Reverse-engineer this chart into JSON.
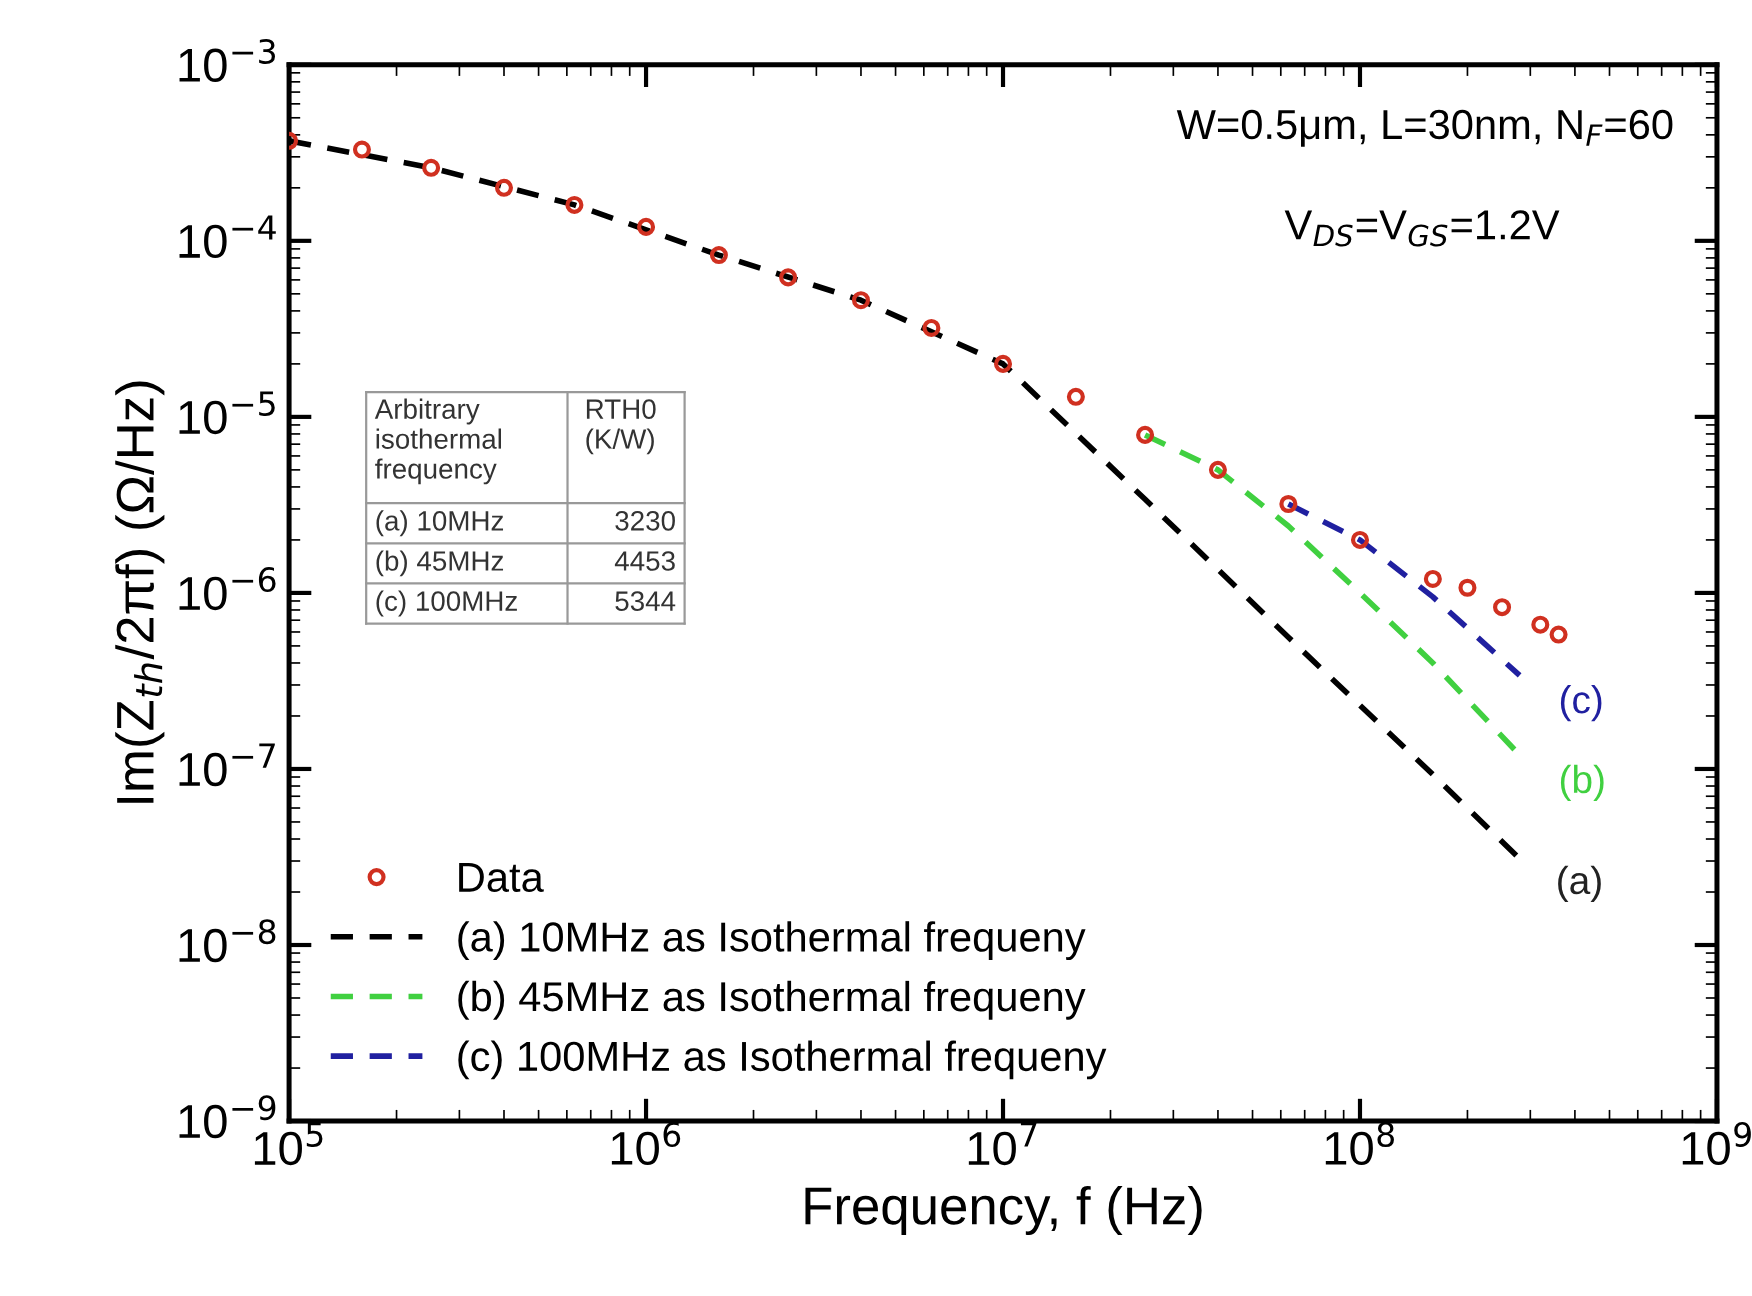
{
  "chart_data": {
    "type": "line",
    "xlabel": "Frequency, f (Hz)",
    "ylabel": "Im(Z$_{th}$/2πf) (Ω/Hz)",
    "log": "xy",
    "xlim": [
      100000,
      1000000000
    ],
    "ylim": [
      1e-09,
      0.001
    ],
    "xticks": [
      {
        "value": 100000,
        "label": "10$^{5}$"
      },
      {
        "value": 1000000,
        "label": "10$^{6}$"
      },
      {
        "value": 10000000,
        "label": "10$^{7}$"
      },
      {
        "value": 100000000,
        "label": "10$^{8}$"
      },
      {
        "value": 1000000000,
        "label": "10$^{9}$"
      }
    ],
    "yticks": [
      {
        "value": 1e-09,
        "label": "10$^{−9}$"
      },
      {
        "value": 1e-08,
        "label": "10$^{−8}$"
      },
      {
        "value": 1e-07,
        "label": "10$^{−7}$"
      },
      {
        "value": 1e-06,
        "label": "10$^{−6}$"
      },
      {
        "value": 1e-05,
        "label": "10$^{−5}$"
      },
      {
        "value": 0.0001,
        "label": "10$^{−4}$"
      },
      {
        "value": 0.001,
        "label": "10$^{−3}$"
      }
    ],
    "grid": false,
    "legend": "bottom left",
    "series": [
      {
        "name": "Data",
        "type": "scatter",
        "marker": "circle",
        "color": "#d03020",
        "x": [
          100000,
          160000,
          250000,
          400000,
          630000,
          1000000,
          1600000,
          2500000,
          4000000,
          6300000,
          10000000,
          16000000,
          25000000,
          40000000,
          63000000,
          100000000,
          160000000,
          200000000,
          250000000,
          320000000,
          360000000
        ],
        "values": [
          0.00037,
          0.00033,
          0.00026,
          0.0002,
          0.00016,
          0.00012,
          8.3e-05,
          6.2e-05,
          4.6e-05,
          3.2e-05,
          2e-05,
          1.3e-05,
          7.9e-06,
          5e-06,
          3.2e-06,
          2e-06,
          1.2e-06,
          1.07e-06,
          8.3e-07,
          6.6e-07,
          5.8e-07
        ]
      },
      {
        "name": "(a) 10MHz as Isothermal frequeny",
        "line_style": "dashed",
        "color": "#000000",
        "x": [
          100000,
          250000,
          630000,
          1600000,
          4000000,
          10000000,
          25000000,
          63000000,
          160000000,
          275000000
        ],
        "values": [
          0.00037,
          0.00026,
          0.00016,
          8.3e-05,
          4.6e-05,
          2e-05,
          3.4e-06,
          5.6e-07,
          9.3e-08,
          3.2e-08
        ]
      },
      {
        "name": "(b) 45MHz as Isothermal frequeny",
        "line_style": "dashed",
        "color": "#40d040",
        "x": [
          25000000,
          40000000,
          63000000,
          100000000,
          160000000,
          280000000
        ],
        "values": [
          7.9e-06,
          5e-06,
          2.4e-06,
          1e-06,
          4e-07,
          1.2e-07
        ]
      },
      {
        "name": "(c) 100MHz as Isothermal frequeny",
        "line_style": "dashed",
        "color": "#2020a0",
        "x": [
          63000000,
          100000000,
          160000000,
          280000000
        ],
        "values": [
          3.2e-06,
          2e-06,
          9.5e-07,
          3.4e-07
        ]
      }
    ],
    "annotations": [
      "W=0.5μm, L=30nm, N$_{F}$=60",
      "V$_{DS}$=V$_{GS}$=1.2V",
      "Arbitrary\nisothermal\nfrequency",
      "RTH0\n(K/W)",
      "(a) 10MHz",
      "3230",
      "(b) 45MHz",
      "4453",
      "(c) 100MHz",
      "5344",
      "(c)",
      "(b)",
      "(a)"
    ]
  }
}
